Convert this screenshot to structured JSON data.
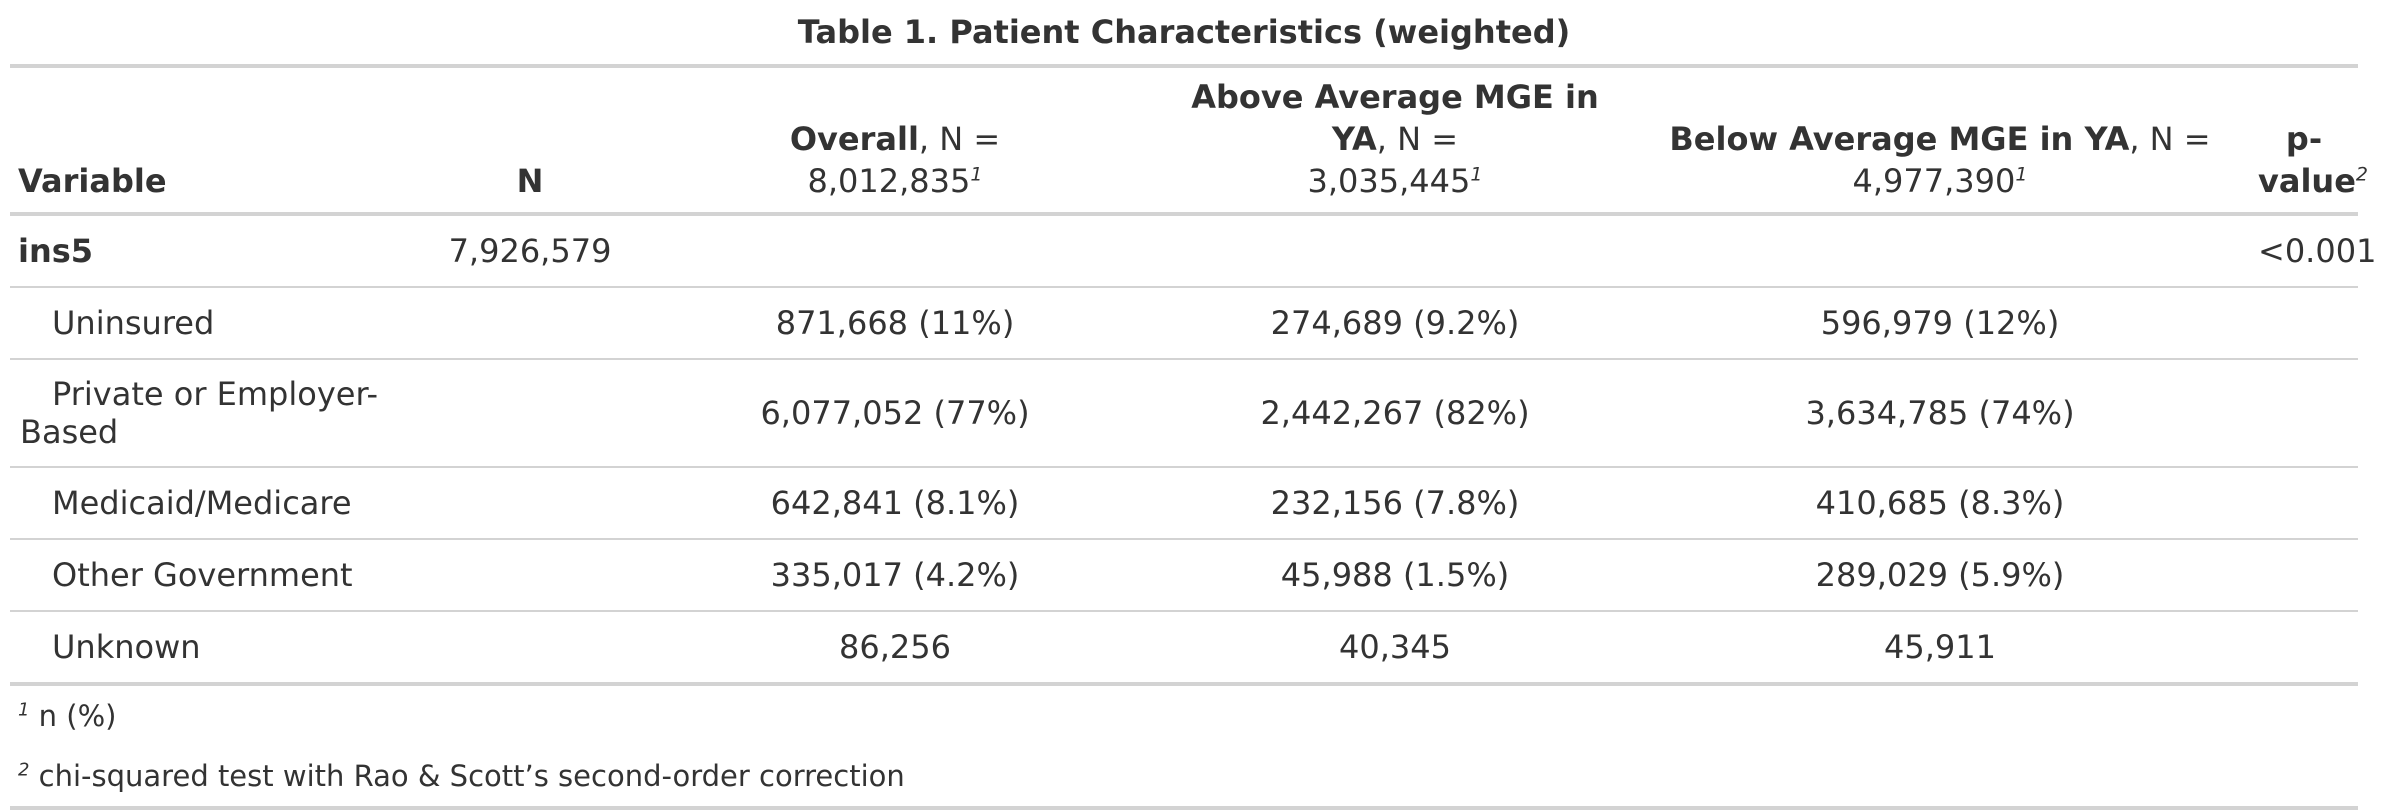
{
  "title": "Table 1. Patient Characteristics (weighted)",
  "headers": {
    "variable": "Variable",
    "n": "N",
    "overall": {
      "label": "Overall",
      "suffix": ", N =",
      "n": "8,012,835",
      "sup": "1"
    },
    "above": {
      "label": "Above Average MGE in YA",
      "suffix": ", N =",
      "n": "3,035,445",
      "sup": "1"
    },
    "below": {
      "label": "Below Average MGE in YA",
      "suffix": ", N =",
      "n": "4,977,390",
      "sup": "1"
    },
    "pvalue": {
      "line1": "p-",
      "line2": "value",
      "sup": "2"
    }
  },
  "rows": {
    "group": {
      "label": "ins5",
      "n": "7,926,579",
      "p": "<0.001"
    },
    "uninsured": {
      "label": "Uninsured",
      "overall": "871,668 (11%)",
      "above": "274,689 (9.2%)",
      "below": "596,979 (12%)"
    },
    "private": {
      "label": "Private or Employer-Based",
      "overall": "6,077,052 (77%)",
      "above": "2,442,267 (82%)",
      "below": "3,634,785 (74%)"
    },
    "medicaid": {
      "label": "Medicaid/Medicare",
      "overall": "642,841 (8.1%)",
      "above": "232,156 (7.8%)",
      "below": "410,685 (8.3%)"
    },
    "other_gov": {
      "label": "Other Government",
      "overall": "335,017 (4.2%)",
      "above": "45,988 (1.5%)",
      "below": "289,029 (5.9%)"
    },
    "unknown": {
      "label": "Unknown",
      "overall": "86,256",
      "above": "40,345",
      "below": "45,911"
    }
  },
  "footnotes": {
    "one": {
      "mark": "1",
      "text": "n (%)"
    },
    "two": {
      "mark": "2",
      "text": "chi-squared test with Rao & Scott’s second-order correction"
    }
  }
}
